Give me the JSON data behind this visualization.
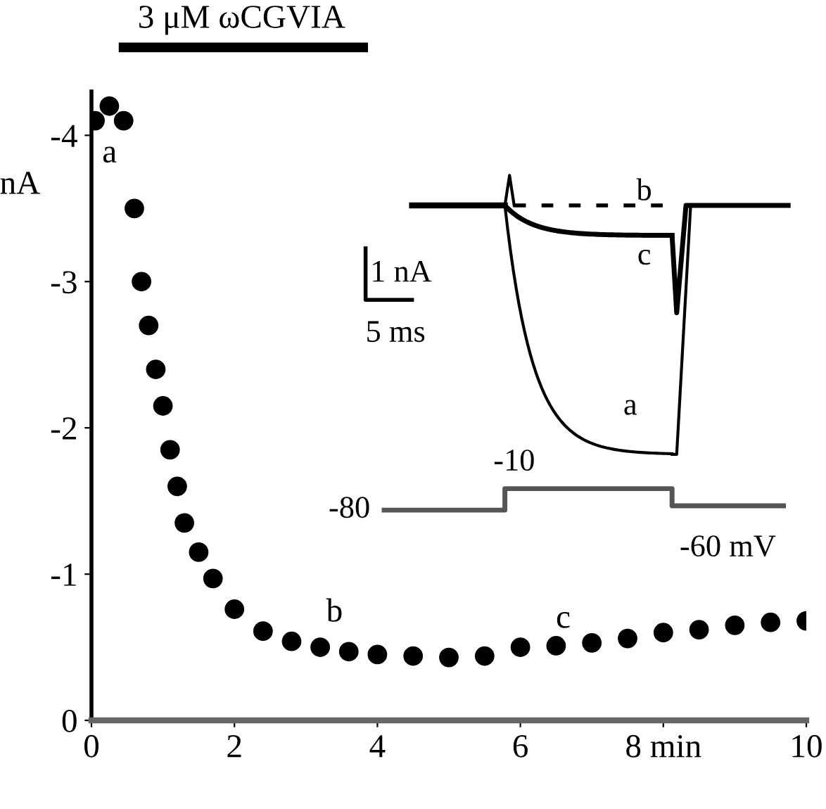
{
  "chart_data": {
    "type": "scatter",
    "ylabel": "nA",
    "marker": "circle",
    "color": "#000000",
    "x": [
      0.05,
      0.25,
      0.45,
      0.6,
      0.7,
      0.8,
      0.9,
      1.0,
      1.1,
      1.2,
      1.3,
      1.5,
      1.7,
      2.0,
      2.4,
      2.8,
      3.2,
      3.6,
      4.0,
      4.5,
      5.0,
      5.5,
      6.0,
      6.5,
      7.0,
      7.5,
      8.0,
      8.5,
      9.0,
      9.5,
      10.0
    ],
    "values": [
      -4.1,
      -4.2,
      -4.1,
      -3.5,
      -3.0,
      -2.7,
      -2.4,
      -2.15,
      -1.85,
      -1.6,
      -1.35,
      -1.15,
      -0.97,
      -0.76,
      -0.61,
      -0.54,
      -0.5,
      -0.47,
      -0.45,
      -0.44,
      -0.43,
      -0.44,
      -0.5,
      -0.51,
      -0.53,
      -0.56,
      -0.6,
      -0.62,
      -0.65,
      -0.67,
      -0.68
    ],
    "xlim": [
      0,
      10
    ],
    "xticks": [
      0,
      2,
      4,
      6,
      {
        "value": 8,
        "label": "8 min"
      },
      10
    ],
    "ylim": [
      0,
      -4.3
    ],
    "yticks": [
      0,
      -1,
      -2,
      -3,
      -4
    ],
    "annotations": [
      "3 μM ωCGVIA",
      "a",
      "b",
      "c",
      "1 nA",
      "5 ms",
      "a",
      "b",
      "c",
      "-10",
      "-80",
      "-60 mV"
    ]
  }
}
